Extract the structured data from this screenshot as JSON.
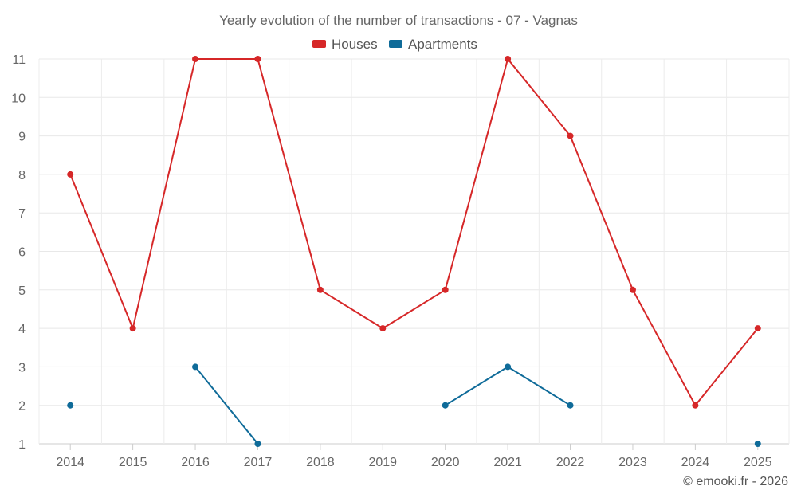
{
  "chart_data": {
    "type": "line",
    "title": "Yearly evolution of the number of transactions - 07 - Vagnas",
    "categories": [
      "2014",
      "2015",
      "2016",
      "2017",
      "2018",
      "2019",
      "2020",
      "2021",
      "2022",
      "2023",
      "2024",
      "2025"
    ],
    "series": [
      {
        "name": "Houses",
        "color": "#d62728",
        "values": [
          8,
          4,
          11,
          11,
          5,
          4,
          5,
          11,
          9,
          5,
          2,
          4
        ]
      },
      {
        "name": "Apartments",
        "color": "#0f6b99",
        "values": [
          2,
          null,
          3,
          1,
          null,
          null,
          2,
          3,
          2,
          null,
          null,
          1
        ]
      }
    ],
    "yticks": [
      1,
      2,
      3,
      4,
      5,
      6,
      7,
      8,
      9,
      10,
      11
    ],
    "ylim": [
      1,
      11
    ],
    "xlabel": "",
    "ylabel": "",
    "grid": true,
    "legend": "top-center"
  },
  "credit": "© emooki.fr - 2026"
}
